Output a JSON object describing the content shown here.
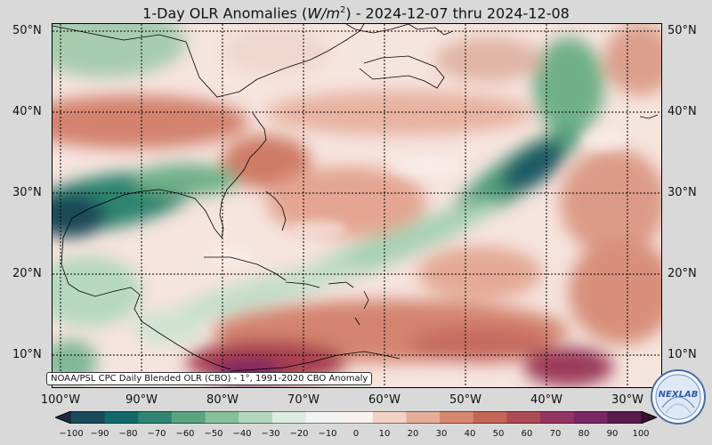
{
  "title": {
    "prefix": "1-Day OLR Anomalies (",
    "unit_base": "W/m",
    "unit_exp": "2",
    "suffix": ") - 2024-12-07 thru 2024-12-08"
  },
  "map": {
    "lat_labels": [
      "50°N",
      "40°N",
      "30°N",
      "20°N",
      "10°N"
    ],
    "lon_labels": [
      "100°W",
      "90°W",
      "80°W",
      "70°W",
      "60°W",
      "50°W",
      "40°W",
      "30°W"
    ],
    "credit": "NOAA/PSL CPC Daily Blended OLR (CBO) - 1°, 1991-2020 CBO Anomaly"
  },
  "colorbar": {
    "ticks": [
      "−100",
      "−90",
      "−80",
      "−70",
      "−60",
      "−50",
      "−40",
      "−30",
      "−20",
      "−10",
      "0",
      "10",
      "20",
      "30",
      "40",
      "50",
      "60",
      "70",
      "80",
      "90",
      "100"
    ],
    "colors": [
      "#1e2a43",
      "#1b4b5a",
      "#12696a",
      "#2f8572",
      "#5aa47f",
      "#86c09a",
      "#b3d7bc",
      "#dcece0",
      "#f3f5f2",
      "#faf2ef",
      "#f3d2c6",
      "#e6ad9a",
      "#d7876f",
      "#c46556",
      "#ad4a55",
      "#933462",
      "#7a2566",
      "#5a1a4b",
      "#3a102f"
    ]
  },
  "logo": {
    "text": "NEXLAB"
  }
}
